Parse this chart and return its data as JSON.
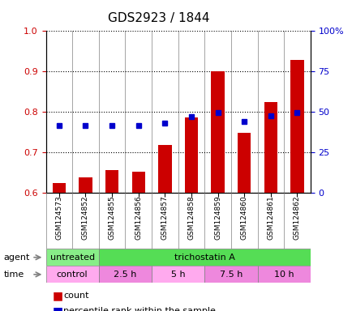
{
  "title": "GDS2923 / 1844",
  "samples": [
    "GSM124573",
    "GSM124852",
    "GSM124855",
    "GSM124856",
    "GSM124857",
    "GSM124858",
    "GSM124859",
    "GSM124860",
    "GSM124861",
    "GSM124862"
  ],
  "count_values": [
    0.625,
    0.638,
    0.657,
    0.653,
    0.718,
    0.787,
    0.901,
    0.748,
    0.825,
    0.928
  ],
  "percentile_values": [
    0.766,
    0.766,
    0.767,
    0.766,
    0.772,
    0.789,
    0.798,
    0.777,
    0.79,
    0.798
  ],
  "ylim_left": [
    0.6,
    1.0
  ],
  "ylim_right": [
    0,
    100
  ],
  "yticks_left": [
    0.6,
    0.7,
    0.8,
    0.9,
    1.0
  ],
  "yticks_right": [
    0,
    25,
    50,
    75,
    100
  ],
  "ytick_labels_right": [
    "0",
    "25",
    "50",
    "75",
    "100%"
  ],
  "bar_color": "#cc0000",
  "dot_color": "#0000cc",
  "bar_bottom": 0.6,
  "agent_groups": [
    {
      "label": "untreated",
      "start": 0,
      "end": 2,
      "color": "#88ee88"
    },
    {
      "label": "trichostatin A",
      "start": 2,
      "end": 10,
      "color": "#55dd55"
    }
  ],
  "time_groups": [
    {
      "label": "control",
      "start": 0,
      "end": 2,
      "color": "#ffaaee"
    },
    {
      "label": "2.5 h",
      "start": 2,
      "end": 4,
      "color": "#ee88dd"
    },
    {
      "label": "5 h",
      "start": 4,
      "end": 6,
      "color": "#ffaaee"
    },
    {
      "label": "7.5 h",
      "start": 6,
      "end": 8,
      "color": "#ee88dd"
    },
    {
      "label": "10 h",
      "start": 8,
      "end": 10,
      "color": "#ee88dd"
    }
  ],
  "grid_color": "#000000",
  "left_tick_color": "#cc0000",
  "right_tick_color": "#0000cc",
  "background_color": "#ffffff",
  "plot_bg": "#ffffff"
}
